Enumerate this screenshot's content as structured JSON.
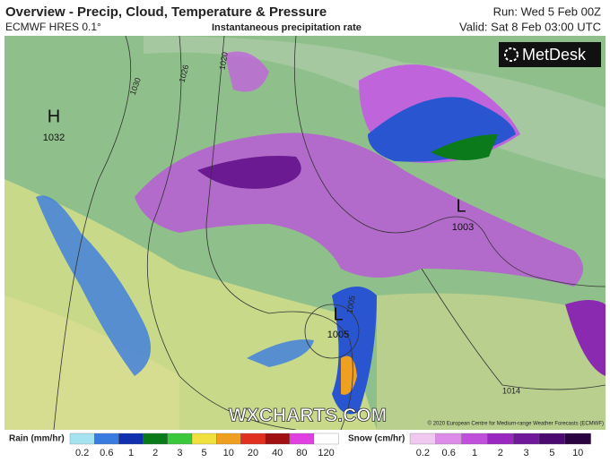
{
  "header": {
    "title": "Overview - Precip, Cloud, Temperature & Pressure",
    "model": "ECMWF HRES 0.1°",
    "field": "Instantaneous precipitation rate",
    "run": "Run: Wed 5 Feb 00Z",
    "valid": "Valid: Sat 8 Feb 03:00 UTC"
  },
  "logo": "MetDesk",
  "pressure_centres": [
    {
      "letter": "H",
      "value": "1032"
    },
    {
      "letter": "L",
      "value": "1003"
    },
    {
      "letter": "L",
      "value": "1005"
    }
  ],
  "isobar_labels": [
    "1030",
    "1026",
    "1020",
    "1014",
    "1005"
  ],
  "watermark": "WXCHARTS.COM",
  "copyright": "© 2020 European Centre for Medium-range Weather Forecasts (ECMWF)",
  "legend": {
    "rain": {
      "title": "Rain (mm/hr)",
      "items": [
        {
          "value": 0.2,
          "color": "#a6e3f0"
        },
        {
          "value": 0.6,
          "color": "#3a7be0"
        },
        {
          "value": 1,
          "color": "#1030b0"
        },
        {
          "value": 2,
          "color": "#0b7a1a"
        },
        {
          "value": 3,
          "color": "#3cc83c"
        },
        {
          "value": 5,
          "color": "#f0e040"
        },
        {
          "value": 10,
          "color": "#f0a020"
        },
        {
          "value": 20,
          "color": "#e03020"
        },
        {
          "value": 40,
          "color": "#a01010"
        },
        {
          "value": 80,
          "color": "#e040e0"
        },
        {
          "value": 120,
          "color": "#ffffff"
        }
      ]
    },
    "snow": {
      "title": "Snow (cm/hr)",
      "items": [
        {
          "value": 0.2,
          "color": "#f0c8f0"
        },
        {
          "value": 0.6,
          "color": "#dc8ce8"
        },
        {
          "value": 1,
          "color": "#c050dc"
        },
        {
          "value": 2,
          "color": "#9a28c0"
        },
        {
          "value": 3,
          "color": "#70189a"
        },
        {
          "value": 5,
          "color": "#4a0a70"
        },
        {
          "value": 10,
          "color": "#2a0440"
        }
      ]
    }
  }
}
